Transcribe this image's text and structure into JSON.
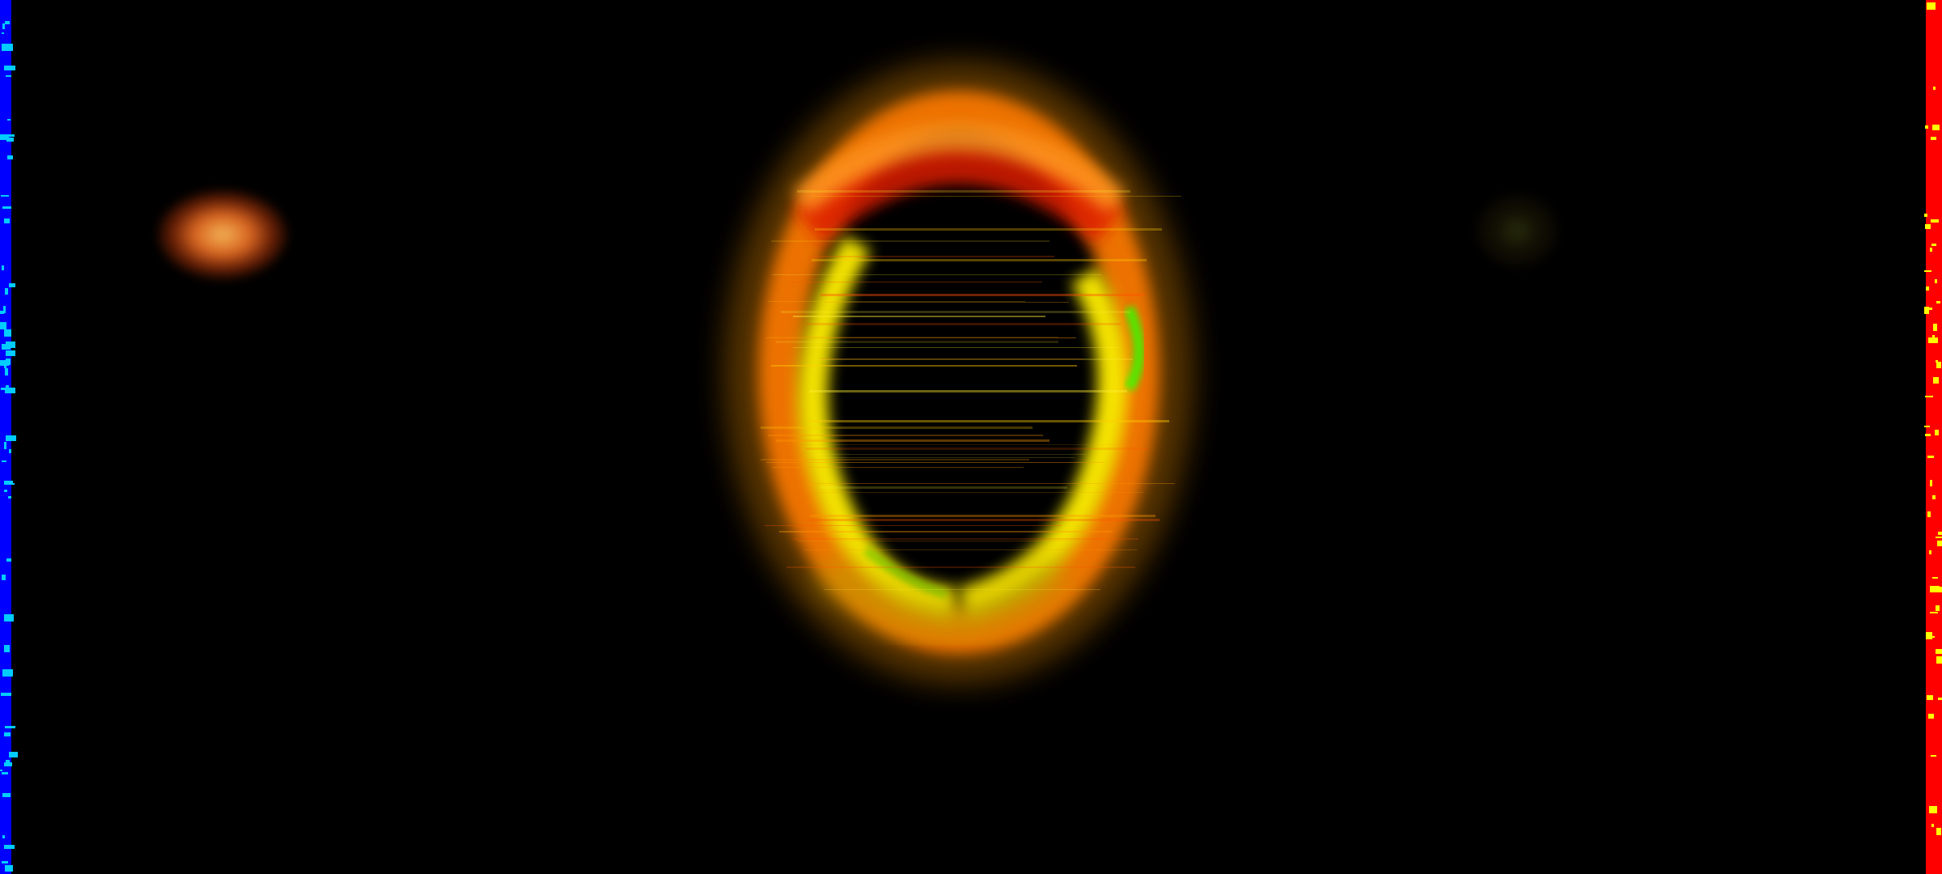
{
  "scene": {
    "background": "#000000",
    "left_edge_color": "#0000ff",
    "left_edge_accent": "#00ccff",
    "right_edge_color": "#ff0000",
    "right_edge_accent": "#ffff00",
    "ring_colors": [
      "#ffff00",
      "#ff9900",
      "#ff3300",
      "#33ff00"
    ]
  }
}
